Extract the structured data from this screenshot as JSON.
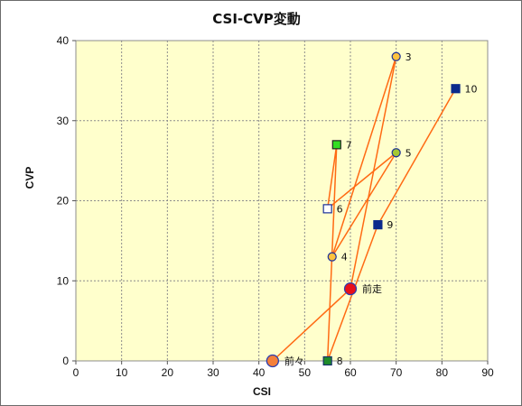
{
  "chart_data": {
    "type": "scatter",
    "title": "CSI-CVP変動",
    "xlabel": "CSI",
    "ylabel": "CVP",
    "xlim": [
      0,
      90
    ],
    "ylim": [
      0,
      40
    ],
    "xticks": [
      "0",
      "10",
      "20",
      "30",
      "40",
      "50",
      "60",
      "70",
      "80",
      "90"
    ],
    "yticks": [
      "0",
      "10",
      "20",
      "30",
      "40"
    ],
    "grid": true,
    "colors": {
      "plot_bg": "#ffffcc",
      "grid": "#8c8c8c",
      "line": "#ff6a13"
    },
    "points": [
      {
        "label": "前々",
        "x": 43,
        "y": 0,
        "marker": "circle-large",
        "fill": "#f47f3a",
        "stroke": "#2a3db0"
      },
      {
        "label": "前走",
        "x": 60,
        "y": 9,
        "marker": "circle-large",
        "fill": "#e8101a",
        "stroke": "#2a3db0"
      },
      {
        "label": "3",
        "x": 70,
        "y": 38,
        "marker": "circle",
        "fill": "#ffc23d",
        "stroke": "#1a2f9a"
      },
      {
        "label": "4",
        "x": 56,
        "y": 13,
        "marker": "circle",
        "fill": "#ffc23d",
        "stroke": "#1a2f9a"
      },
      {
        "label": "5",
        "x": 70,
        "y": 26,
        "marker": "circle",
        "fill": "#a5c832",
        "stroke": "#1a2f9a"
      },
      {
        "label": "6",
        "x": 55,
        "y": 19,
        "marker": "square",
        "fill": "#ffffff",
        "stroke": "#1a2f9a"
      },
      {
        "label": "7",
        "x": 57,
        "y": 27,
        "marker": "square",
        "fill": "#33dd22",
        "stroke": "#222222"
      },
      {
        "label": "8",
        "x": 55,
        "y": 0,
        "marker": "square",
        "fill": "#1f8c2a",
        "stroke": "#14306a"
      },
      {
        "label": "9",
        "x": 66,
        "y": 17,
        "marker": "square",
        "fill": "#0c2a8c",
        "stroke": "#0c2a8c"
      },
      {
        "label": "10",
        "x": 83,
        "y": 34,
        "marker": "square",
        "fill": "#0c2a8c",
        "stroke": "#0c2a8c"
      }
    ],
    "path": [
      "10",
      "9",
      "8",
      "7",
      "6",
      "5",
      "4",
      "3",
      "前走",
      "前々"
    ]
  }
}
